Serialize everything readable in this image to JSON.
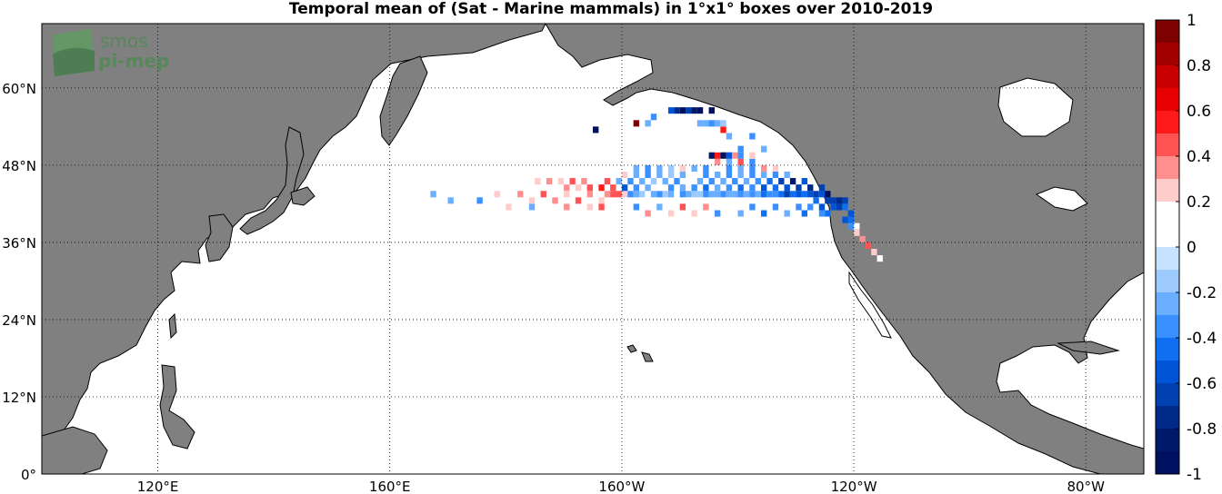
{
  "title": "Temporal mean of (Sat - Marine mammals) in 1°x1° boxes over 2010-2019",
  "logo": {
    "line1": "smos",
    "line2": "pi-mep"
  },
  "lat_labels": [
    "0°",
    "12°N",
    "24°N",
    "36°N",
    "48°N",
    "60°N"
  ],
  "lon_labels": [
    "120°E",
    "160°E",
    "160°W",
    "120°W",
    "80°W"
  ],
  "colorbar": {
    "ticks": [
      "1",
      "0.8",
      "0.6",
      "0.4",
      "0.2",
      "0",
      "-0.2",
      "-0.4",
      "-0.6",
      "-0.8",
      "-1"
    ],
    "colors": [
      "#7f0000",
      "#a30000",
      "#c80000",
      "#e60000",
      "#ff1a1a",
      "#ff5252",
      "#ff8f8f",
      "#ffcccc",
      "#ffffff",
      "#ffffff",
      "#c6e2ff",
      "#9ccaff",
      "#6aafff",
      "#3a90ff",
      "#0f6ff0",
      "#0055d6",
      "#0040b0",
      "#002a8a",
      "#001a6a",
      "#001060"
    ]
  },
  "colors": {
    "land": "#808080",
    "coast": "#000000",
    "ocean": "#ffffff"
  },
  "map_data": {
    "lon_range": [
      100,
      290
    ],
    "lat_range": [
      0,
      70
    ],
    "cells": [
      [
        -163,
        43,
        0.35
      ],
      [
        -162,
        43,
        0.5
      ],
      [
        -161,
        43,
        0.45
      ],
      [
        -160,
        43,
        0.3
      ],
      [
        -159,
        43,
        -0.3
      ],
      [
        -158,
        43,
        -0.2
      ],
      [
        -157,
        43,
        -0.15
      ],
      [
        -156,
        43,
        0.1
      ],
      [
        -155,
        43,
        -0.2
      ],
      [
        -154,
        43,
        -0.3
      ],
      [
        -153,
        43,
        -0.1
      ],
      [
        -152,
        43,
        -0.2
      ],
      [
        -151,
        43,
        0.15
      ],
      [
        -150,
        43,
        -0.3
      ],
      [
        -149,
        43,
        -0.2
      ],
      [
        -148,
        43,
        -0.1
      ],
      [
        -147,
        43,
        -0.15
      ],
      [
        -146,
        43,
        -0.3
      ],
      [
        -145,
        43,
        -0.2
      ],
      [
        -144,
        43,
        -0.25
      ],
      [
        -143,
        43,
        -0.3
      ],
      [
        -142,
        43,
        -0.2
      ],
      [
        -141,
        43,
        -0.2
      ],
      [
        -140,
        43,
        -0.3
      ],
      [
        -139,
        43,
        -0.2
      ],
      [
        -138,
        43,
        -0.3
      ],
      [
        -137,
        43,
        -0.2
      ],
      [
        -136,
        43,
        -0.4
      ],
      [
        -135,
        43,
        -0.3
      ],
      [
        -134,
        43,
        -0.35
      ],
      [
        -133,
        43,
        -0.45
      ],
      [
        -132,
        43,
        -0.6
      ],
      [
        -131,
        43,
        -0.4
      ],
      [
        -130,
        43,
        -0.5
      ],
      [
        -129,
        43,
        -0.4
      ],
      [
        -128,
        43,
        -0.5
      ],
      [
        -127,
        43,
        -0.6
      ],
      [
        -126,
        43,
        -0.55
      ],
      [
        -125,
        43,
        -0.9
      ],
      [
        -170,
        44,
        0.4
      ],
      [
        -168,
        44,
        0.3
      ],
      [
        -166,
        44,
        0.5
      ],
      [
        -164,
        44,
        0.6
      ],
      [
        -162,
        44,
        0.45
      ],
      [
        -160,
        44,
        -0.5
      ],
      [
        -158,
        44,
        -0.3
      ],
      [
        -156,
        44,
        -0.2
      ],
      [
        -154,
        44,
        0.2
      ],
      [
        -152,
        44,
        -0.3
      ],
      [
        -150,
        44,
        -0.2
      ],
      [
        -148,
        44,
        -0.3
      ],
      [
        -146,
        44,
        -0.4
      ],
      [
        -144,
        44,
        -0.2
      ],
      [
        -142,
        44,
        -0.3
      ],
      [
        -140,
        44,
        -0.4
      ],
      [
        -138,
        44,
        -0.3
      ],
      [
        -136,
        44,
        -0.5
      ],
      [
        -134,
        44,
        -0.4
      ],
      [
        -132,
        44,
        -0.5
      ],
      [
        -130,
        44,
        -0.6
      ],
      [
        -128,
        44,
        -0.7
      ],
      [
        -126,
        44,
        -0.6
      ],
      [
        -175,
        45,
        0.3
      ],
      [
        -173,
        45,
        0.4
      ],
      [
        -171,
        45,
        0.3
      ],
      [
        -169,
        45,
        0.5
      ],
      [
        -167,
        45,
        0.4
      ],
      [
        -165,
        45,
        0.2
      ],
      [
        -163,
        45,
        0.5
      ],
      [
        -161,
        45,
        -0.2
      ],
      [
        -159,
        45,
        -0.3
      ],
      [
        -157,
        45,
        -0.2
      ],
      [
        -155,
        45,
        -0.1
      ],
      [
        -153,
        45,
        -0.2
      ],
      [
        -151,
        45,
        -0.3
      ],
      [
        -149,
        45,
        0.2
      ],
      [
        -147,
        45,
        -0.2
      ],
      [
        -145,
        45,
        -0.3
      ],
      [
        -143,
        45,
        -0.2
      ],
      [
        -141,
        45,
        -0.3
      ],
      [
        -139,
        45,
        -0.2
      ],
      [
        -137,
        45,
        -0.3
      ],
      [
        -135,
        45,
        -0.4
      ],
      [
        -133,
        45,
        -0.6
      ],
      [
        -131,
        45,
        -0.8
      ],
      [
        -129,
        45,
        -0.5
      ],
      [
        -160,
        46,
        0.3
      ],
      [
        -158,
        46,
        -0.2
      ],
      [
        -156,
        46,
        -0.3
      ],
      [
        -154,
        46,
        -0.2
      ],
      [
        -152,
        46,
        -0.1
      ],
      [
        -150,
        46,
        -0.2
      ],
      [
        -148,
        46,
        0.2
      ],
      [
        -146,
        46,
        -0.3
      ],
      [
        -144,
        46,
        -0.2
      ],
      [
        -142,
        46,
        -0.3
      ],
      [
        -140,
        46,
        -0.2
      ],
      [
        -138,
        46,
        -0.3
      ],
      [
        -136,
        46,
        -0.2
      ],
      [
        -134,
        46,
        -0.3
      ],
      [
        -132,
        46,
        -0.2
      ],
      [
        -160,
        47,
        0.2
      ],
      [
        -158,
        47,
        -0.2
      ],
      [
        -156,
        47,
        -0.3
      ],
      [
        -154,
        47,
        -0.2
      ],
      [
        -152,
        47,
        -0.1
      ],
      [
        -150,
        47,
        0.3
      ],
      [
        -148,
        47,
        -0.2
      ],
      [
        -146,
        47,
        -0.3
      ],
      [
        -144,
        47,
        0.2
      ],
      [
        -142,
        47,
        -0.3
      ],
      [
        -140,
        47,
        -0.2
      ],
      [
        -138,
        47,
        -0.3
      ],
      [
        -136,
        47,
        0.4
      ],
      [
        -134,
        47,
        0.3
      ],
      [
        -144,
        48,
        0.4
      ],
      [
        -142,
        48,
        -0.2
      ],
      [
        -140,
        48,
        0.5
      ],
      [
        -138,
        48,
        -0.3
      ],
      [
        -145,
        49,
        -0.8
      ],
      [
        -144,
        49,
        0.6
      ],
      [
        -143,
        49,
        -0.9
      ],
      [
        -142,
        49,
        -0.5
      ],
      [
        -141,
        49,
        0.4
      ],
      [
        -140,
        49,
        -0.3
      ],
      [
        -138,
        49,
        0.3
      ],
      [
        -144,
        50,
        0.2
      ],
      [
        -140,
        50,
        -0.3
      ],
      [
        -136,
        50,
        -0.2
      ],
      [
        -146,
        51,
        0.2
      ],
      [
        -142,
        52,
        -0.2
      ],
      [
        -138,
        52,
        -0.3
      ],
      [
        -143,
        53,
        0.6
      ],
      [
        -139,
        53,
        0.2
      ],
      [
        -147,
        54,
        -0.2
      ],
      [
        -146,
        54,
        -0.2
      ],
      [
        -145,
        54,
        -0.3
      ],
      [
        -144,
        54,
        -0.2
      ],
      [
        -143,
        54,
        -0.1
      ],
      [
        -165,
        53,
        -1
      ],
      [
        -158,
        54,
        0.9
      ],
      [
        -156,
        54,
        -0.2
      ],
      [
        -155,
        55,
        -0.3
      ],
      [
        -152,
        56,
        -0.5
      ],
      [
        -151,
        56,
        -0.7
      ],
      [
        -150,
        56,
        -0.9
      ],
      [
        -149,
        56,
        -0.6
      ],
      [
        -148,
        56,
        -0.8
      ],
      [
        -147,
        56,
        -0.9
      ],
      [
        -145,
        56,
        -1
      ],
      [
        -122,
        42,
        -0.6
      ],
      [
        -123,
        42,
        -0.7
      ],
      [
        -124,
        42,
        -0.6
      ],
      [
        -121,
        40,
        -0.5
      ],
      [
        -122,
        41,
        -0.4
      ],
      [
        -123,
        41,
        -0.6
      ],
      [
        -121,
        39,
        -0.4
      ],
      [
        -122,
        39,
        -0.5
      ],
      [
        -120,
        38,
        0.2
      ],
      [
        -121,
        38,
        -0.3
      ],
      [
        -120,
        37,
        0.3
      ],
      [
        -119,
        36,
        0.4
      ],
      [
        -118,
        35,
        0.5
      ],
      [
        -117,
        34,
        0.3
      ],
      [
        -116,
        33,
        0.2
      ],
      [
        -127,
        42,
        -0.4
      ],
      [
        -126,
        41,
        -0.5
      ],
      [
        -125,
        42,
        -0.6
      ],
      [
        -124,
        41,
        -0.5
      ],
      [
        -125,
        40,
        -0.4
      ],
      [
        -126,
        40,
        -0.3
      ],
      [
        -128,
        41,
        -0.3
      ],
      [
        -129,
        40,
        -0.4
      ],
      [
        -130,
        41,
        -0.3
      ],
      [
        -132,
        40,
        -0.2
      ],
      [
        -134,
        41,
        -0.3
      ],
      [
        -136,
        40,
        -0.4
      ],
      [
        -138,
        41,
        -0.3
      ],
      [
        -140,
        40,
        -0.2
      ],
      [
        -142,
        41,
        0.2
      ],
      [
        -144,
        40,
        -0.3
      ],
      [
        -146,
        41,
        0.4
      ],
      [
        -148,
        40,
        0.3
      ],
      [
        -150,
        41,
        0.5
      ],
      [
        -152,
        40,
        0.3
      ],
      [
        -154,
        41,
        -0.2
      ],
      [
        -156,
        40,
        0.4
      ],
      [
        -158,
        41,
        -0.3
      ],
      [
        -190,
        42,
        -0.2
      ],
      [
        -188,
        42,
        0.2
      ],
      [
        -185,
        42,
        -0.3
      ],
      [
        -182,
        43,
        0.3
      ],
      [
        -180,
        42,
        0.2
      ],
      [
        -178,
        43,
        0.4
      ],
      [
        -176,
        42,
        0.3
      ],
      [
        -174,
        43,
        0.5
      ],
      [
        -172,
        42,
        0.4
      ],
      [
        -170,
        43,
        0.3
      ],
      [
        -168,
        42,
        0.5
      ],
      [
        -166,
        43,
        0.4
      ],
      [
        -164,
        42,
        0.3
      ],
      [
        -196,
        42,
        0.2
      ],
      [
        -193,
        43,
        -0.2
      ],
      [
        -180,
        41,
        0.3
      ],
      [
        -176,
        41,
        -0.2
      ],
      [
        -170,
        41,
        0.4
      ],
      [
        -166,
        41,
        0.3
      ],
      [
        -164,
        41,
        0.5
      ]
    ]
  }
}
